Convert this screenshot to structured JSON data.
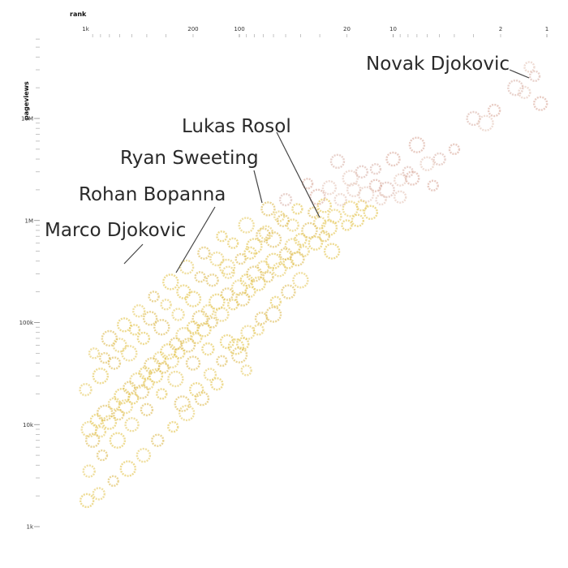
{
  "chart_data": {
    "type": "scatter",
    "xlabel": "rank",
    "ylabel": "pageviews",
    "x_scale": "log",
    "y_scale": "log",
    "x_reversed": true,
    "xlim": [
      1000,
      1
    ],
    "ylim": [
      1000,
      50000000
    ],
    "x_ticks": [
      {
        "value": 1000,
        "label": "1k"
      },
      {
        "value": 200,
        "label": "200"
      },
      {
        "value": 100,
        "label": "100"
      },
      {
        "value": 20,
        "label": "20"
      },
      {
        "value": 10,
        "label": "10"
      },
      {
        "value": 2,
        "label": "2"
      },
      {
        "value": 1,
        "label": "1"
      }
    ],
    "y_ticks": [
      {
        "value": 10000000,
        "label": "10M"
      },
      {
        "value": 1000000,
        "label": "1M"
      },
      {
        "value": 100000,
        "label": "100k"
      },
      {
        "value": 10000,
        "label": "10k"
      },
      {
        "value": 1000,
        "label": "1k"
      }
    ],
    "annotations": [
      {
        "label": "Novak Djokovic",
        "x": 1.5,
        "y": 14000000
      },
      {
        "label": "Lukas Rosol",
        "x": 25,
        "y": 1100000
      },
      {
        "label": "Ryan Sweeting",
        "x": 75,
        "y": 1300000
      },
      {
        "label": "Rohan Bopanna",
        "x": 180,
        "y": 270000
      },
      {
        "label": "Marco Djokovic",
        "x": 330,
        "y": 330000
      }
    ],
    "points": [
      [
        1.2,
        26000000
      ],
      [
        1.4,
        18000000
      ],
      [
        1.1,
        14000000
      ],
      [
        1.6,
        20000000
      ],
      [
        1.3,
        32000000
      ],
      [
        2.2,
        12000000
      ],
      [
        3.0,
        10000000
      ],
      [
        2.5,
        9000000
      ],
      [
        4,
        5000000
      ],
      [
        5,
        4000000
      ],
      [
        6,
        3600000
      ],
      [
        7,
        5500000
      ],
      [
        8,
        3000000
      ],
      [
        9,
        2500000
      ],
      [
        10,
        4000000
      ],
      [
        11,
        2000000
      ],
      [
        12,
        1600000
      ],
      [
        13,
        2200000
      ],
      [
        14,
        1200000
      ],
      [
        15,
        1800000
      ],
      [
        16,
        1400000
      ],
      [
        17,
        1000000
      ],
      [
        18,
        2000000
      ],
      [
        19,
        1300000
      ],
      [
        20,
        900000
      ],
      [
        22,
        1600000
      ],
      [
        24,
        1100000
      ],
      [
        26,
        850000
      ],
      [
        28,
        700000
      ],
      [
        30,
        950000
      ],
      [
        32,
        600000
      ],
      [
        35,
        800000
      ],
      [
        38,
        500000
      ],
      [
        40,
        650000
      ],
      [
        42,
        420000
      ],
      [
        45,
        560000
      ],
      [
        48,
        380000
      ],
      [
        50,
        470000
      ],
      [
        55,
        330000
      ],
      [
        60,
        400000
      ],
      [
        65,
        280000
      ],
      [
        70,
        350000
      ],
      [
        75,
        240000
      ],
      [
        80,
        300000
      ],
      [
        85,
        200000
      ],
      [
        90,
        260000
      ],
      [
        95,
        170000
      ],
      [
        100,
        220000
      ],
      [
        110,
        150000
      ],
      [
        120,
        190000
      ],
      [
        130,
        120000
      ],
      [
        140,
        160000
      ],
      [
        150,
        100000
      ],
      [
        160,
        130000
      ],
      [
        170,
        85000
      ],
      [
        180,
        110000
      ],
      [
        190,
        70000
      ],
      [
        200,
        90000
      ],
      [
        215,
        60000
      ],
      [
        230,
        75000
      ],
      [
        245,
        50000
      ],
      [
        260,
        62000
      ],
      [
        275,
        42000
      ],
      [
        290,
        52000
      ],
      [
        310,
        36000
      ],
      [
        330,
        45000
      ],
      [
        350,
        30000
      ],
      [
        370,
        38000
      ],
      [
        390,
        25000
      ],
      [
        410,
        32000
      ],
      [
        430,
        21000
      ],
      [
        460,
        27000
      ],
      [
        490,
        18000
      ],
      [
        520,
        23000
      ],
      [
        550,
        15000
      ],
      [
        580,
        19000
      ],
      [
        610,
        12500
      ],
      [
        650,
        16000
      ],
      [
        700,
        10500
      ],
      [
        750,
        13000
      ],
      [
        800,
        8500
      ],
      [
        850,
        11000
      ],
      [
        900,
        7000
      ],
      [
        950,
        9000
      ],
      [
        13,
        3200000
      ],
      [
        9,
        1700000
      ],
      [
        7.5,
        2600000
      ],
      [
        25,
        500000
      ],
      [
        33,
        1200000
      ],
      [
        45,
        900000
      ],
      [
        28,
        1400000
      ],
      [
        60,
        650000
      ],
      [
        55,
        1100000
      ],
      [
        85,
        480000
      ],
      [
        70,
        720000
      ],
      [
        120,
        350000
      ],
      [
        110,
        600000
      ],
      [
        150,
        260000
      ],
      [
        140,
        420000
      ],
      [
        200,
        170000
      ],
      [
        180,
        280000
      ],
      [
        250,
        120000
      ],
      [
        230,
        200000
      ],
      [
        320,
        90000
      ],
      [
        300,
        150000
      ],
      [
        420,
        70000
      ],
      [
        380,
        110000
      ],
      [
        520,
        50000
      ],
      [
        480,
        85000
      ],
      [
        650,
        40000
      ],
      [
        600,
        60000
      ],
      [
        800,
        30000
      ],
      [
        750,
        45000
      ],
      [
        1000,
        22000
      ],
      [
        23,
        3800000
      ],
      [
        19,
        2600000
      ],
      [
        36,
        2300000
      ],
      [
        50,
        1600000
      ],
      [
        65,
        1300000
      ],
      [
        90,
        900000
      ],
      [
        130,
        700000
      ],
      [
        170,
        480000
      ],
      [
        220,
        350000
      ],
      [
        280,
        250000
      ],
      [
        360,
        180000
      ],
      [
        450,
        130000
      ],
      [
        560,
        95000
      ],
      [
        700,
        70000
      ],
      [
        880,
        50000
      ],
      [
        160,
        55000
      ],
      [
        200,
        40000
      ],
      [
        260,
        28000
      ],
      [
        320,
        20000
      ],
      [
        400,
        14000
      ],
      [
        500,
        10000
      ],
      [
        620,
        7000
      ],
      [
        780,
        5000
      ],
      [
        950,
        3500
      ],
      [
        120,
        65000
      ],
      [
        100,
        48000
      ],
      [
        90,
        34000
      ],
      [
        140,
        25000
      ],
      [
        175,
        18000
      ],
      [
        220,
        13000
      ],
      [
        270,
        9500
      ],
      [
        340,
        7000
      ],
      [
        420,
        5000
      ],
      [
        530,
        3700
      ],
      [
        660,
        2800
      ],
      [
        820,
        2100
      ],
      [
        980,
        1800
      ],
      [
        60,
        120000
      ],
      [
        75,
        85000
      ],
      [
        95,
        62000
      ],
      [
        48,
        200000
      ],
      [
        40,
        260000
      ],
      [
        58,
        160000
      ],
      [
        72,
        110000
      ],
      [
        88,
        80000
      ],
      [
        105,
        58000
      ],
      [
        130,
        42000
      ],
      [
        155,
        31000
      ],
      [
        190,
        22000
      ],
      [
        235,
        16000
      ],
      [
        5.5,
        2200000
      ],
      [
        16,
        3000000
      ],
      [
        26,
        2100000
      ],
      [
        31,
        1700000
      ],
      [
        42,
        1300000
      ],
      [
        52,
        1000000
      ],
      [
        67,
        760000
      ],
      [
        80,
        560000
      ],
      [
        98,
        420000
      ],
      [
        118,
        310000
      ]
    ]
  }
}
